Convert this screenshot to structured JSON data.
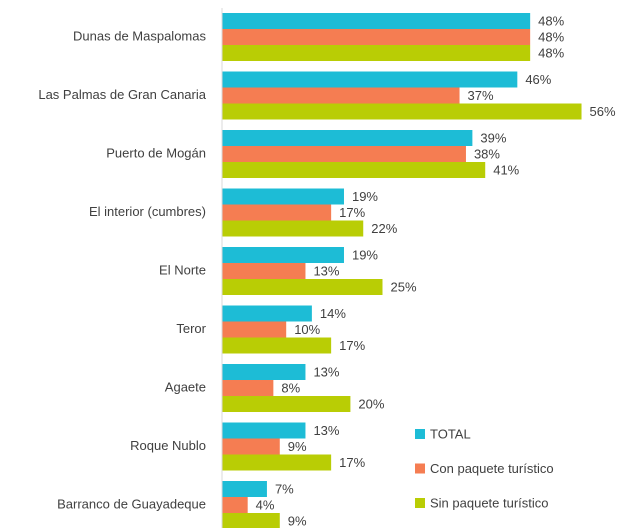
{
  "chart_data": {
    "type": "bar",
    "orientation": "horizontal",
    "categories": [
      "Dunas de Maspalomas",
      "Las Palmas de Gran Canaria",
      "Puerto de Mogán",
      "El interior (cumbres)",
      "El Norte",
      "Teror",
      "Agaete",
      "Roque Nublo",
      "Barranco de Guayadeque"
    ],
    "series": [
      {
        "name": "TOTAL",
        "color": "#1dbcd6",
        "values": [
          48,
          46,
          39,
          19,
          19,
          14,
          13,
          13,
          7
        ],
        "value_labels": [
          "48%",
          "46%",
          "39%",
          "19%",
          "19%",
          "14%",
          "13%",
          "13%",
          "7%"
        ]
      },
      {
        "name": "Con paquete turístico",
        "color": "#f57d52",
        "values": [
          48,
          37,
          38,
          17,
          13,
          10,
          8,
          9,
          4
        ],
        "value_labels": [
          "48%",
          "37%",
          "38%",
          "17%",
          "13%",
          "10%",
          "8%",
          "9%",
          "4%"
        ]
      },
      {
        "name": "Sin paquete turístico",
        "color": "#b9cd05",
        "values": [
          48,
          56,
          41,
          22,
          25,
          17,
          20,
          17,
          9
        ],
        "value_labels": [
          "48%",
          "56%",
          "41%",
          "22%",
          "25%",
          "17%",
          "20%",
          "17%",
          "9%"
        ]
      }
    ],
    "legend": "lower right"
  }
}
